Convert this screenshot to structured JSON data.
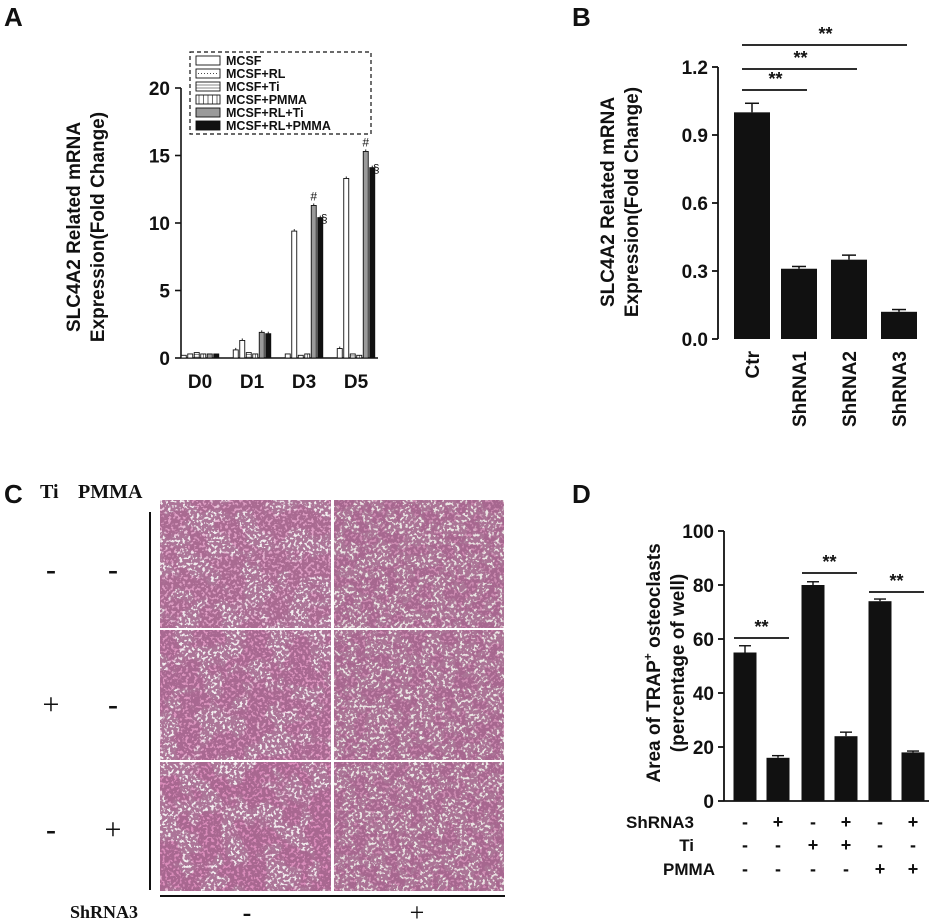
{
  "panel_labels": {
    "a": "A",
    "b": "B",
    "c": "C",
    "d": "D"
  },
  "colors": {
    "ink": "#111111",
    "grey_bar": "#9a9a9a",
    "stain_dense": "#b03a78",
    "stain_light": "#d9bfcc",
    "background_stain": "#ece8ea"
  },
  "chart_data": [
    {
      "panel": "A",
      "type": "bar",
      "ylabel": "SLC4A2 Related mRNA\nExpression(Fold Change)",
      "ylabel_line1": "SLC4A2 Related mRNA",
      "ylabel_line2": "Expression(Fold Change)",
      "ylim": [
        0,
        20
      ],
      "yticks": [
        "0",
        "5",
        "10",
        "15",
        "20"
      ],
      "categories": [
        "D0",
        "D1",
        "D3",
        "D5"
      ],
      "legend_position": "top",
      "series": [
        {
          "name": "MCSF",
          "values": [
            0.2,
            0.6,
            0.3,
            0.7
          ]
        },
        {
          "name": "MCSF+RL",
          "values": [
            0.3,
            1.3,
            9.4,
            13.3
          ]
        },
        {
          "name": "MCSF+Ti",
          "values": [
            0.4,
            0.4,
            0.2,
            0.3
          ]
        },
        {
          "name": "MCSF+PMMA",
          "values": [
            0.3,
            0.3,
            0.3,
            0.2
          ]
        },
        {
          "name": "MCSF+RL+Ti",
          "values": [
            0.3,
            1.9,
            11.3,
            15.3
          ]
        },
        {
          "name": "MCSF+RL+PMMA",
          "values": [
            0.3,
            1.8,
            10.4,
            14.1
          ]
        }
      ],
      "annotations": [
        {
          "text": "#",
          "category": "D3",
          "series": "MCSF+RL+Ti"
        },
        {
          "text": "§",
          "category": "D3",
          "series": "MCSF+RL+PMMA"
        },
        {
          "text": "#",
          "category": "D5",
          "series": "MCSF+RL+Ti"
        },
        {
          "text": "§",
          "category": "D5",
          "series": "MCSF+RL+PMMA"
        }
      ]
    },
    {
      "panel": "B",
      "type": "bar",
      "ylabel_line1": "SLC4A2 Related mRNA",
      "ylabel_line2": "Expression(Fold Change)",
      "ylim": [
        0,
        1.2
      ],
      "yticks": [
        "0.0",
        "0.3",
        "0.6",
        "0.9",
        "1.2"
      ],
      "categories": [
        "Ctr",
        "ShRNA1",
        "ShRNA2",
        "ShRNA3"
      ],
      "values": [
        1.0,
        0.31,
        0.35,
        0.12
      ],
      "errors": [
        0.04,
        0.01,
        0.02,
        0.01
      ],
      "significance": [
        {
          "from": "Ctr",
          "to": "ShRNA1",
          "text": "**"
        },
        {
          "from": "Ctr",
          "to": "ShRNA2",
          "text": "**"
        },
        {
          "from": "Ctr",
          "to": "ShRNA3",
          "text": "**"
        }
      ]
    },
    {
      "panel": "D",
      "type": "bar",
      "ylabel_line1": "Area of TRAP",
      "ylabel_sup": "+",
      "ylabel_line1_rest": " osteoclasts",
      "ylabel_line2": "(percentage of well)",
      "ylim": [
        0,
        100
      ],
      "yticks": [
        "0",
        "20",
        "40",
        "60",
        "80",
        "100"
      ],
      "values": [
        55,
        16,
        80,
        24,
        74,
        18
      ],
      "errors": [
        2.5,
        0.8,
        1.2,
        1.5,
        0.8,
        0.5
      ],
      "conditions": [
        {
          "label": "ShRNA3",
          "marks": [
            "-",
            "+",
            "-",
            "+",
            "-",
            "+"
          ]
        },
        {
          "label": "Ti",
          "marks": [
            "-",
            "-",
            "+",
            "+",
            "-",
            "-"
          ]
        },
        {
          "label": "PMMA",
          "marks": [
            "-",
            "-",
            "-",
            "-",
            "+",
            "+"
          ]
        }
      ],
      "significance": [
        {
          "from": 0,
          "to": 1,
          "text": "**"
        },
        {
          "from": 2,
          "to": 3,
          "text": "**"
        },
        {
          "from": 4,
          "to": 5,
          "text": "**"
        }
      ]
    }
  ],
  "panel_c": {
    "header_ti": "Ti",
    "header_pmma": "PMMA",
    "rows": [
      {
        "ti": "-",
        "pmma": "-"
      },
      {
        "ti": "+",
        "pmma": "-"
      },
      {
        "ti": "-",
        "pmma": "+"
      }
    ],
    "bottom_label": "ShRNA3",
    "columns": [
      "-",
      "+"
    ]
  }
}
